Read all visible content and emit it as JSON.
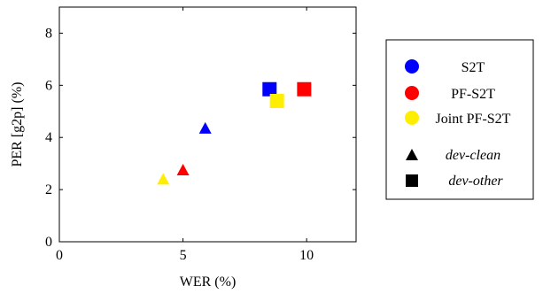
{
  "chart_data": {
    "type": "scatter",
    "title": "",
    "xlabel": "WER (%)",
    "ylabel": "PER [g2p] (%)",
    "xlim": [
      0,
      12
    ],
    "ylim": [
      0,
      9
    ],
    "xticks": [
      0,
      5,
      10
    ],
    "yticks": [
      0,
      2,
      4,
      6,
      8
    ],
    "grid": false,
    "legend_position": "outside-right",
    "series": [
      {
        "name": "S2T",
        "color": "#0000ff",
        "points": [
          {
            "x": 5.9,
            "y": 4.35,
            "marker": "triangle"
          },
          {
            "x": 8.5,
            "y": 5.85,
            "marker": "square"
          }
        ]
      },
      {
        "name": "PF-S2T",
        "color": "#ff0000",
        "points": [
          {
            "x": 5.0,
            "y": 2.75,
            "marker": "triangle"
          },
          {
            "x": 9.9,
            "y": 5.85,
            "marker": "square"
          }
        ]
      },
      {
        "name": "Joint PF-S2T",
        "color": "#ffee00",
        "points": [
          {
            "x": 4.2,
            "y": 2.4,
            "marker": "triangle"
          },
          {
            "x": 8.8,
            "y": 5.4,
            "marker": "square"
          }
        ]
      }
    ],
    "marker_legend": [
      {
        "label": "dev-clean",
        "marker": "triangle"
      },
      {
        "label": "dev-other",
        "marker": "square"
      }
    ]
  }
}
